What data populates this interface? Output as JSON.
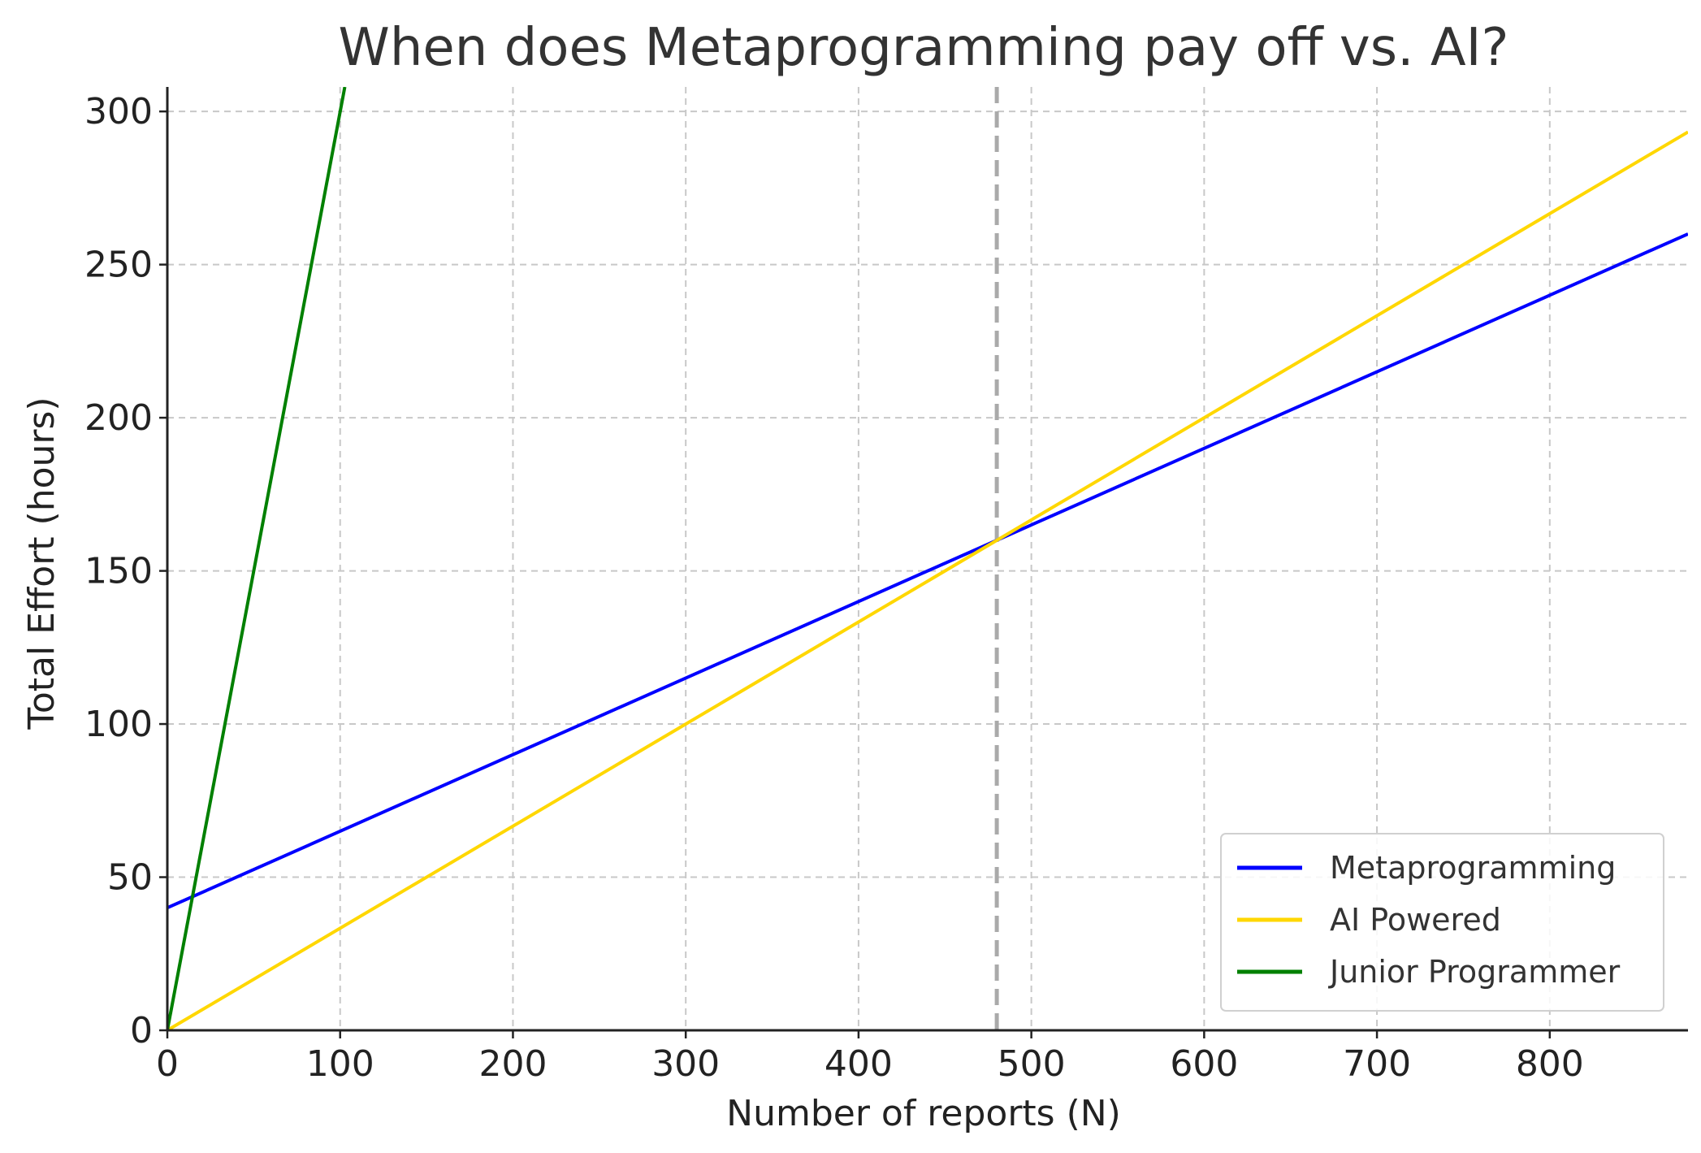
{
  "chart_data": {
    "type": "line",
    "title": "When does Metaprogramming pay off vs. AI?",
    "xlabel": "Number of reports (N)",
    "ylabel": "Total Effort (hours)",
    "xlim": [
      0,
      880
    ],
    "ylim": [
      0,
      308
    ],
    "xticks": [
      "0",
      "100",
      "200",
      "300",
      "400",
      "500",
      "600",
      "700",
      "800"
    ],
    "yticks": [
      "0",
      "50",
      "100",
      "150",
      "200",
      "250",
      "300"
    ],
    "grid": true,
    "legend_position": "bottom-right",
    "series": [
      {
        "name": "Metaprogramming",
        "color": "#0000ff",
        "x": [
          0,
          880
        ],
        "y": [
          40,
          260
        ]
      },
      {
        "name": "AI Powered",
        "color": "#ffd700",
        "x": [
          0,
          880
        ],
        "y": [
          0,
          293.3
        ]
      },
      {
        "name": "Junior Programmer",
        "color": "#008000",
        "x": [
          0,
          102.7
        ],
        "y": [
          0,
          308
        ]
      }
    ],
    "annotations": [
      {
        "type": "vertical-line",
        "x": 480,
        "style": "dashed",
        "color": "#aaaaaa"
      }
    ]
  }
}
